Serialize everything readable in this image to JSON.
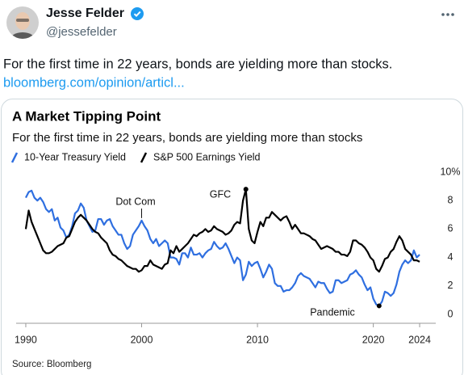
{
  "post": {
    "name": "Jesse Felder",
    "handle": "@jessefelder",
    "text": "For the first time in 22 years, bonds are yielding more than stocks.",
    "link": "bloomberg.com/opinion/articl..."
  },
  "chart_data": {
    "type": "line",
    "title": "A Market Tipping Point",
    "subtitle": "For the first time in 22 years, bonds are yielding more than stocks",
    "source": "Source: Bloomberg",
    "annotations": [
      "Dot Com",
      "GFC",
      "Pandemic"
    ],
    "x": [
      1990,
      1990.25,
      1990.5,
      1990.75,
      1991,
      1991.25,
      1991.5,
      1991.75,
      1992,
      1992.25,
      1992.5,
      1992.75,
      1993,
      1993.25,
      1993.5,
      1993.75,
      1994,
      1994.25,
      1994.5,
      1994.75,
      1995,
      1995.25,
      1995.5,
      1995.75,
      1996,
      1996.25,
      1996.5,
      1996.75,
      1997,
      1997.25,
      1997.5,
      1997.75,
      1998,
      1998.25,
      1998.5,
      1998.75,
      1999,
      1999.25,
      1999.5,
      1999.75,
      2000,
      2000.25,
      2000.5,
      2000.75,
      2001,
      2001.25,
      2001.5,
      2001.75,
      2002,
      2002.25,
      2002.5,
      2002.75,
      2003,
      2003.25,
      2003.5,
      2003.75,
      2004,
      2004.25,
      2004.5,
      2004.75,
      2005,
      2005.25,
      2005.5,
      2005.75,
      2006,
      2006.25,
      2006.5,
      2006.75,
      2007,
      2007.25,
      2007.5,
      2007.75,
      2008,
      2008.25,
      2008.5,
      2008.75,
      2009,
      2009.25,
      2009.5,
      2009.75,
      2010,
      2010.25,
      2010.5,
      2010.75,
      2011,
      2011.25,
      2011.5,
      2011.75,
      2012,
      2012.25,
      2012.5,
      2012.75,
      2013,
      2013.25,
      2013.5,
      2013.75,
      2014,
      2014.25,
      2014.5,
      2014.75,
      2015,
      2015.25,
      2015.5,
      2015.75,
      2016,
      2016.25,
      2016.5,
      2016.75,
      2017,
      2017.25,
      2017.5,
      2017.75,
      2018,
      2018.25,
      2018.5,
      2018.75,
      2019,
      2019.25,
      2019.5,
      2019.75,
      2020,
      2020.25,
      2020.5,
      2020.75,
      2021,
      2021.25,
      2021.5,
      2021.75,
      2022,
      2022.25,
      2022.5,
      2022.75,
      2023,
      2023.25,
      2023.5,
      2023.75,
      2024
    ],
    "series": [
      {
        "name": "10-Year Treasury Yield",
        "color": "#2f6fe0",
        "values": [
          8.2,
          8.6,
          8.7,
          8.2,
          8.0,
          8.2,
          7.9,
          7.4,
          7.2,
          7.4,
          6.6,
          6.8,
          6.1,
          5.9,
          5.4,
          5.6,
          6.2,
          7.1,
          7.3,
          7.8,
          7.5,
          6.6,
          6.2,
          5.8,
          5.9,
          6.7,
          6.7,
          6.3,
          6.6,
          6.7,
          6.2,
          5.9,
          5.6,
          5.6,
          5.0,
          4.6,
          4.8,
          5.6,
          5.9,
          6.2,
          6.6,
          6.2,
          5.9,
          5.3,
          5.0,
          5.3,
          4.8,
          5.0,
          5.2,
          5.0,
          4.0,
          4.0,
          3.9,
          3.5,
          4.3,
          4.3,
          4.0,
          4.7,
          4.2,
          4.2,
          4.3,
          4.0,
          4.3,
          4.5,
          4.6,
          5.1,
          4.8,
          4.6,
          4.7,
          5.0,
          4.6,
          4.1,
          3.6,
          4.0,
          3.8,
          2.4,
          2.8,
          3.7,
          3.4,
          3.6,
          3.7,
          3.2,
          2.6,
          3.0,
          3.5,
          3.2,
          2.2,
          2.0,
          2.0,
          1.6,
          1.7,
          1.7,
          1.9,
          2.2,
          2.7,
          2.9,
          2.7,
          2.6,
          2.5,
          2.2,
          1.9,
          2.3,
          2.2,
          2.2,
          1.8,
          1.5,
          1.6,
          2.4,
          2.4,
          2.2,
          2.3,
          2.4,
          2.8,
          2.9,
          3.1,
          2.8,
          2.6,
          2.1,
          1.7,
          1.9,
          1.1,
          0.7,
          0.6,
          0.9,
          1.6,
          1.5,
          1.3,
          1.5,
          2.1,
          3.0,
          3.5,
          3.8,
          3.6,
          3.8,
          4.5,
          4.0,
          4.2
        ]
      },
      {
        "name": "S&P 500 Earnings Yield",
        "color": "#000000",
        "values": [
          6.0,
          7.3,
          6.5,
          6.0,
          5.5,
          5.0,
          4.5,
          4.3,
          4.3,
          4.4,
          4.6,
          4.8,
          4.9,
          5.0,
          5.4,
          5.5,
          6.0,
          6.5,
          6.8,
          7.0,
          6.8,
          6.6,
          6.3,
          6.0,
          5.8,
          5.7,
          5.4,
          5.2,
          5.0,
          4.5,
          4.2,
          4.1,
          3.9,
          3.8,
          3.6,
          3.4,
          3.3,
          3.2,
          3.2,
          3.0,
          3.1,
          3.4,
          3.4,
          3.8,
          3.5,
          3.4,
          3.3,
          3.2,
          3.5,
          3.6,
          4.5,
          4.3,
          4.8,
          4.4,
          4.6,
          4.8,
          5.0,
          5.3,
          5.6,
          5.5,
          5.7,
          5.8,
          6.0,
          5.8,
          5.9,
          6.2,
          6.0,
          5.9,
          5.8,
          5.6,
          5.7,
          5.9,
          6.3,
          6.5,
          6.4,
          8.0,
          8.8,
          6.0,
          5.2,
          5.0,
          5.8,
          6.5,
          6.2,
          6.8,
          6.8,
          7.2,
          7.0,
          6.8,
          6.6,
          6.8,
          6.9,
          6.5,
          6.0,
          6.3,
          6.0,
          5.7,
          5.7,
          5.6,
          5.5,
          5.3,
          5.2,
          4.9,
          4.6,
          4.7,
          4.8,
          4.7,
          4.6,
          4.4,
          4.4,
          4.2,
          4.2,
          4.1,
          4.4,
          5.2,
          5.2,
          5.0,
          4.9,
          4.7,
          4.4,
          4.0,
          3.8,
          3.2,
          3.0,
          3.4,
          3.9,
          4.0,
          4.4,
          4.6,
          5.1,
          5.5,
          5.2,
          4.6,
          4.4,
          4.2,
          3.8,
          3.8,
          3.7
        ]
      }
    ],
    "xlim": [
      1989,
      2025
    ],
    "xticks": [
      1990,
      2000,
      2010,
      2020,
      2024
    ],
    "ylim": [
      0,
      10
    ],
    "yticks": [
      0,
      2,
      4,
      6,
      8,
      {
        "value": 10,
        "label": "10%"
      }
    ],
    "grid": false
  }
}
